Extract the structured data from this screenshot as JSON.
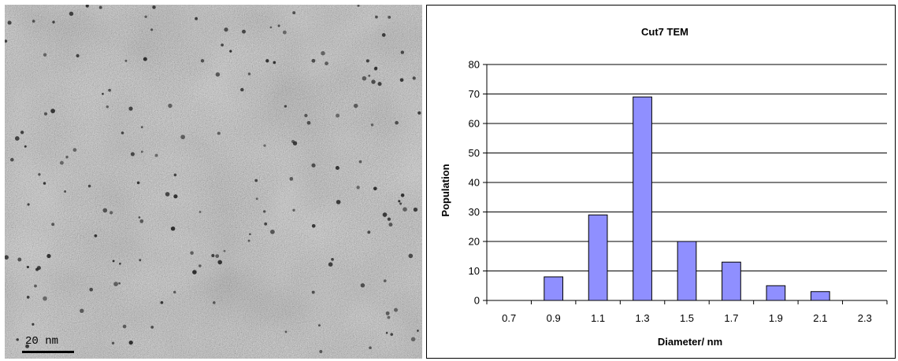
{
  "micrograph": {
    "scale_label": "20 nm"
  },
  "chart_data": {
    "type": "bar",
    "title": "Cut7 TEM",
    "xlabel": "Diameter/ nm",
    "ylabel": "Population",
    "categories": [
      "0.7",
      "0.9",
      "1.1",
      "1.3",
      "1.5",
      "1.7",
      "1.9",
      "2.1",
      "2.3"
    ],
    "values": [
      0,
      8,
      29,
      69,
      20,
      13,
      5,
      3,
      0
    ],
    "ylim": [
      0,
      80
    ],
    "yticks": [
      0,
      10,
      20,
      30,
      40,
      50,
      60,
      70,
      80
    ],
    "grid": "horizontal",
    "bar_color": "#8f8fff",
    "bar_edge_color": "#000000"
  }
}
